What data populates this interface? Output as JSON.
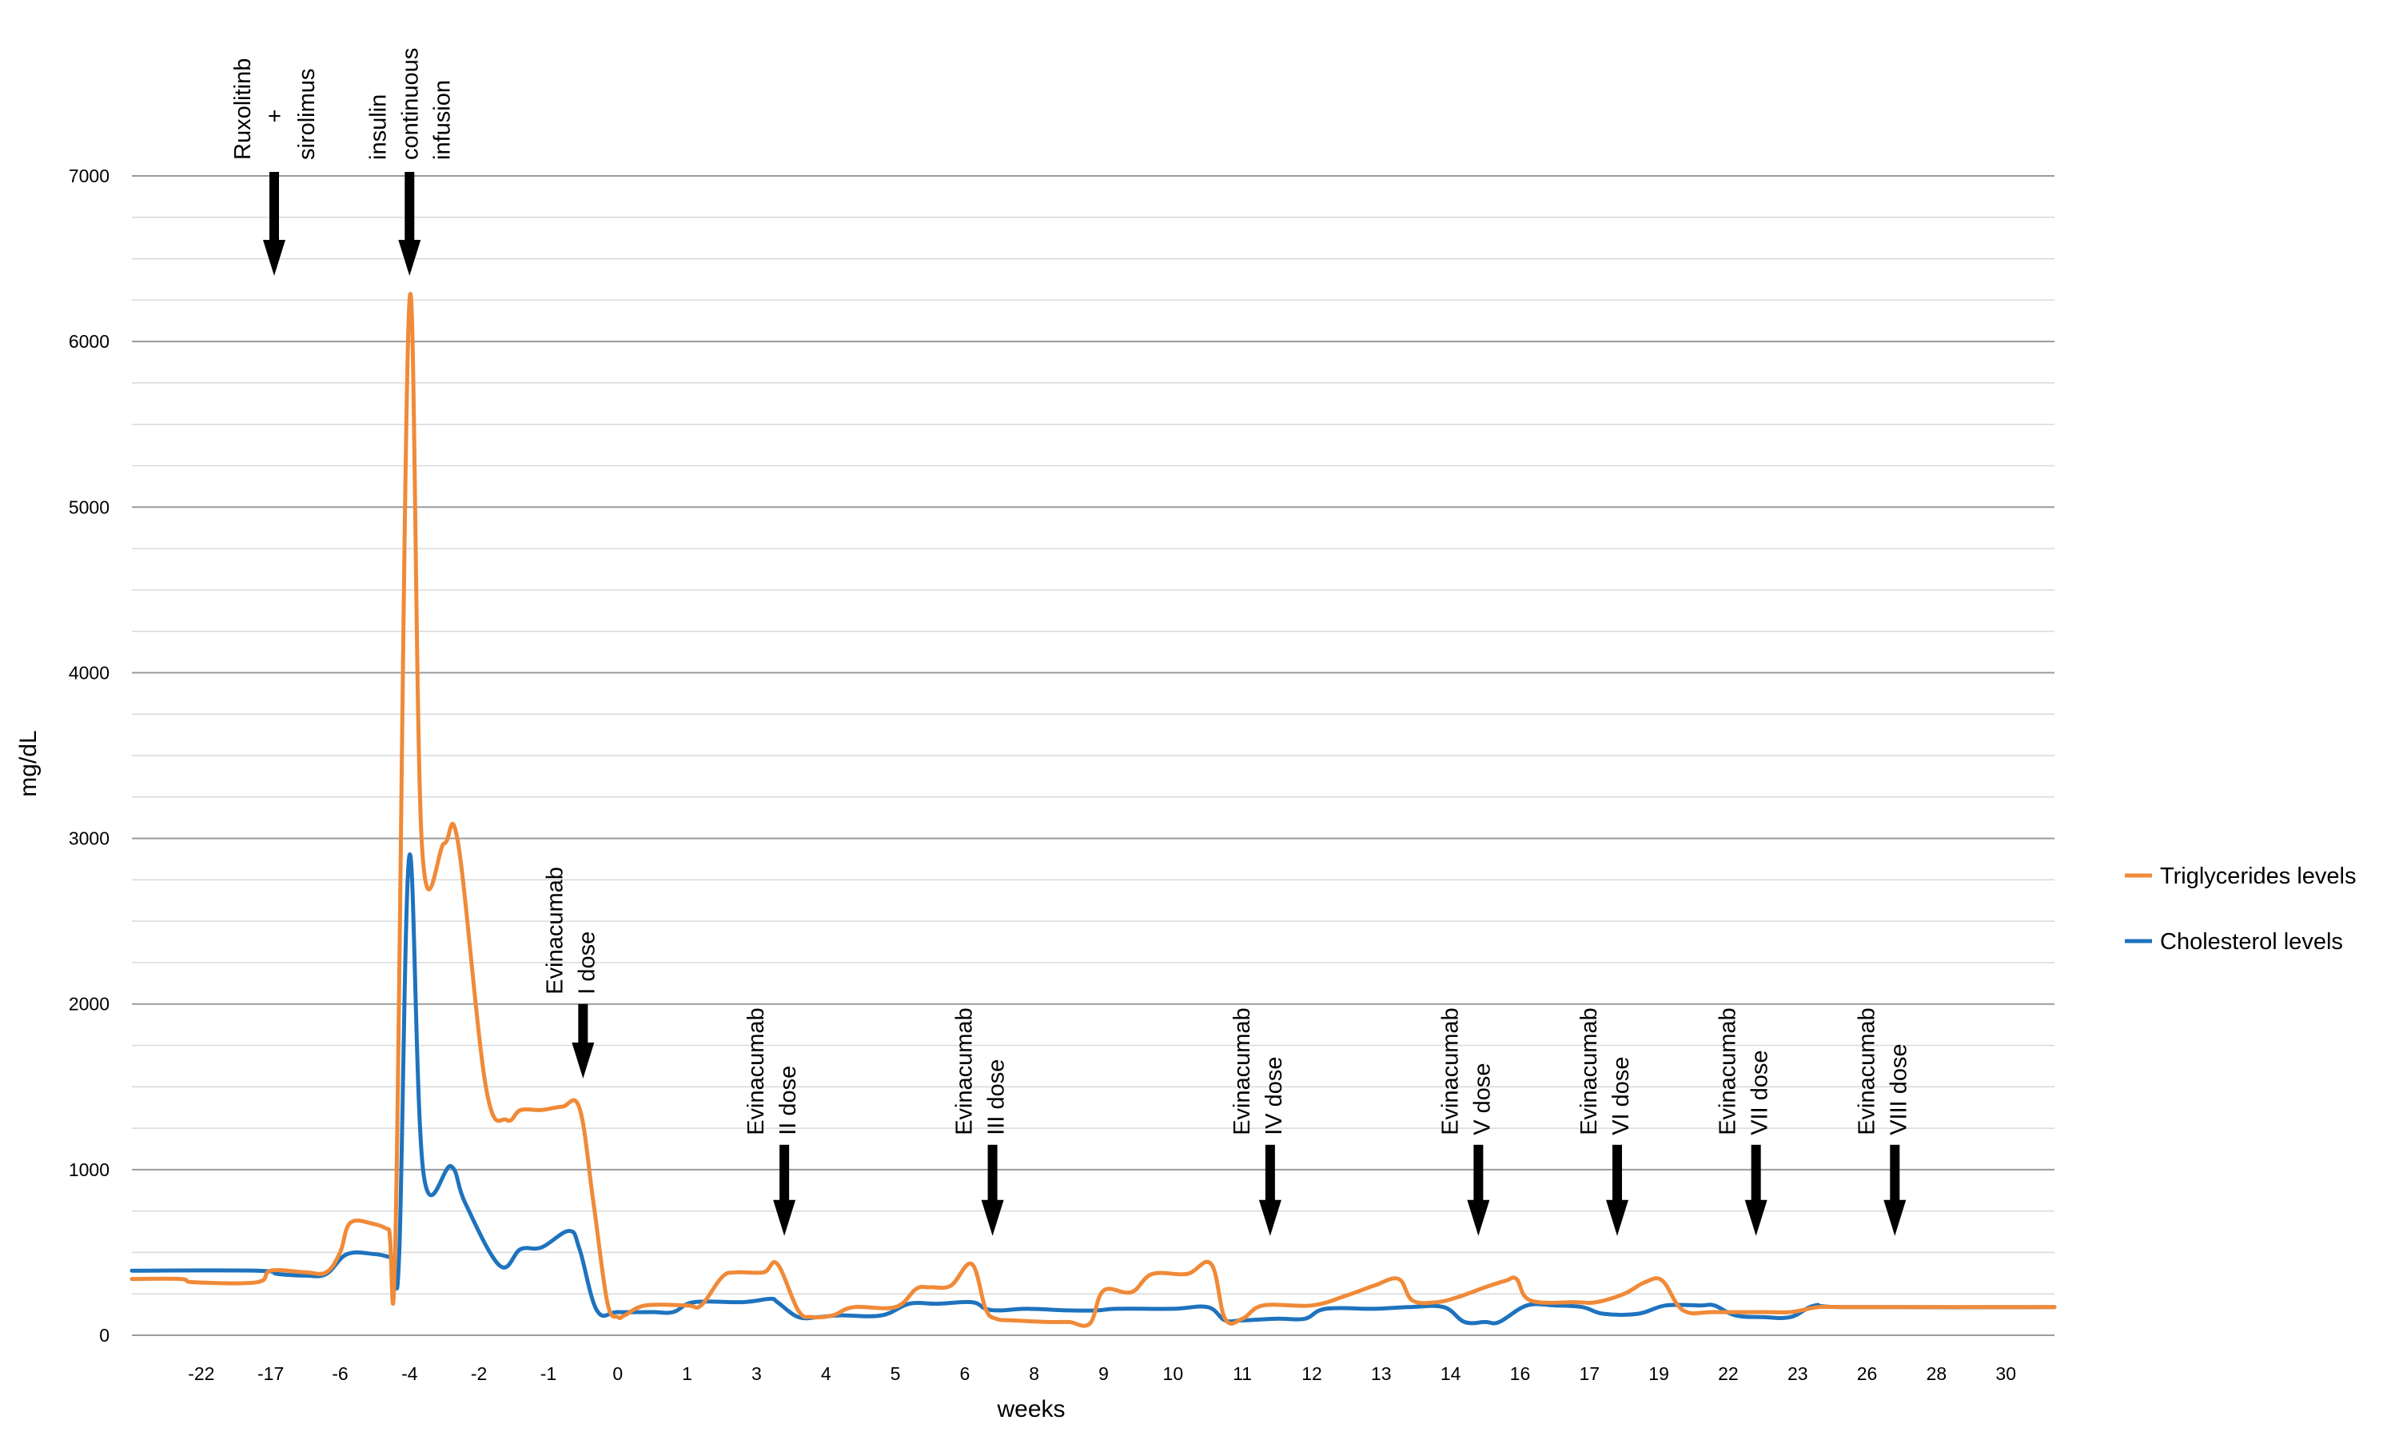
{
  "colors": {
    "triglycerides": "#F08A38",
    "cholesterol": "#1E73BE",
    "grid": "#BFBFBF",
    "arrow": "#000000"
  },
  "chart_data": {
    "type": "line",
    "title": "",
    "xlabel": "weeks",
    "ylabel": "mg/dL",
    "ylim": [
      0,
      7000
    ],
    "grid": true,
    "legend_position": "right",
    "y_ticks": [
      0,
      1000,
      2000,
      3000,
      4000,
      5000,
      6000,
      7000
    ],
    "x_tick_labels": [
      "-22",
      "-17",
      "-6",
      "-4",
      "-2",
      "-1",
      "0",
      "1",
      "3",
      "4",
      "5",
      "6",
      "8",
      "9",
      "10",
      "11",
      "12",
      "13",
      "14",
      "16",
      "17",
      "19",
      "22",
      "23",
      "26",
      "28",
      "30"
    ],
    "x_tick_positions": [
      0.5,
      1.5,
      2.5,
      3.5,
      4.5,
      5.5,
      6.5,
      7.5,
      8.5,
      9.5,
      10.5,
      11.5,
      12.5,
      13.5,
      14.5,
      15.5,
      16.5,
      17.5,
      18.5,
      19.5,
      20.5,
      21.5,
      22.5,
      23.5,
      24.5,
      25.5,
      26.5
    ],
    "x_range": [
      -0.5,
      27.2
    ],
    "series": [
      {
        "name": "Triglycerides levels",
        "color": "#F08A38",
        "points": [
          [
            -0.5,
            340
          ],
          [
            0.2,
            340
          ],
          [
            0.4,
            320
          ],
          [
            1.3,
            320
          ],
          [
            1.5,
            390
          ],
          [
            2.0,
            380
          ],
          [
            2.3,
            380
          ],
          [
            2.5,
            500
          ],
          [
            2.65,
            680
          ],
          [
            3.0,
            670
          ],
          [
            3.2,
            640
          ],
          [
            3.3,
            640
          ],
          [
            3.5,
            6250
          ],
          [
            3.68,
            2950
          ],
          [
            4.0,
            2970
          ],
          [
            4.2,
            2970
          ],
          [
            4.6,
            1500
          ],
          [
            4.9,
            1300
          ],
          [
            5.1,
            1360
          ],
          [
            5.4,
            1360
          ],
          [
            5.7,
            1380
          ],
          [
            5.95,
            1370
          ],
          [
            6.15,
            800
          ],
          [
            6.35,
            200
          ],
          [
            6.5,
            110
          ],
          [
            6.6,
            120
          ],
          [
            6.9,
            180
          ],
          [
            7.5,
            180
          ],
          [
            7.7,
            180
          ],
          [
            8.0,
            350
          ],
          [
            8.2,
            380
          ],
          [
            8.6,
            380
          ],
          [
            8.8,
            430
          ],
          [
            9.1,
            150
          ],
          [
            9.3,
            110
          ],
          [
            9.6,
            120
          ],
          [
            9.9,
            170
          ],
          [
            10.5,
            170
          ],
          [
            10.8,
            280
          ],
          [
            11.0,
            290
          ],
          [
            11.3,
            300
          ],
          [
            11.6,
            430
          ],
          [
            11.8,
            160
          ],
          [
            11.95,
            100
          ],
          [
            12.2,
            90
          ],
          [
            12.7,
            80
          ],
          [
            13.0,
            80
          ],
          [
            13.3,
            70
          ],
          [
            13.5,
            270
          ],
          [
            13.9,
            260
          ],
          [
            14.2,
            370
          ],
          [
            14.7,
            370
          ],
          [
            15.05,
            430
          ],
          [
            15.25,
            100
          ],
          [
            15.5,
            100
          ],
          [
            15.8,
            180
          ],
          [
            16.5,
            180
          ],
          [
            17.0,
            240
          ],
          [
            17.4,
            300
          ],
          [
            17.75,
            340
          ],
          [
            17.95,
            210
          ],
          [
            18.3,
            200
          ],
          [
            18.6,
            230
          ],
          [
            19.0,
            290
          ],
          [
            19.3,
            330
          ],
          [
            19.45,
            340
          ],
          [
            19.65,
            210
          ],
          [
            20.3,
            200
          ],
          [
            20.6,
            200
          ],
          [
            21.0,
            250
          ],
          [
            21.3,
            320
          ],
          [
            21.55,
            330
          ],
          [
            21.85,
            150
          ],
          [
            22.3,
            140
          ],
          [
            23.0,
            140
          ],
          [
            23.4,
            140
          ],
          [
            23.8,
            170
          ],
          [
            24.2,
            170
          ],
          [
            24.5,
            170
          ],
          [
            27.2,
            170
          ]
        ]
      },
      {
        "name": "Cholesterol levels",
        "color": "#1E73BE",
        "points": [
          [
            -0.5,
            390
          ],
          [
            1.3,
            390
          ],
          [
            1.6,
            370
          ],
          [
            2.0,
            360
          ],
          [
            2.3,
            370
          ],
          [
            2.6,
            490
          ],
          [
            3.0,
            490
          ],
          [
            3.25,
            470
          ],
          [
            3.35,
            480
          ],
          [
            3.5,
            2900
          ],
          [
            3.7,
            980
          ],
          [
            4.1,
            1020
          ],
          [
            4.3,
            800
          ],
          [
            4.8,
            420
          ],
          [
            5.1,
            520
          ],
          [
            5.4,
            530
          ],
          [
            5.8,
            630
          ],
          [
            5.95,
            520
          ],
          [
            6.2,
            150
          ],
          [
            6.5,
            140
          ],
          [
            7.0,
            140
          ],
          [
            7.3,
            140
          ],
          [
            7.6,
            200
          ],
          [
            8.3,
            200
          ],
          [
            8.7,
            220
          ],
          [
            8.8,
            200
          ],
          [
            9.1,
            110
          ],
          [
            9.4,
            110
          ],
          [
            9.7,
            120
          ],
          [
            10.3,
            120
          ],
          [
            10.7,
            190
          ],
          [
            11.1,
            190
          ],
          [
            11.6,
            200
          ],
          [
            11.8,
            160
          ],
          [
            12.0,
            150
          ],
          [
            12.4,
            160
          ],
          [
            13.0,
            150
          ],
          [
            13.4,
            150
          ],
          [
            13.7,
            160
          ],
          [
            14.5,
            160
          ],
          [
            15.0,
            170
          ],
          [
            15.25,
            90
          ],
          [
            15.5,
            90
          ],
          [
            16.0,
            100
          ],
          [
            16.4,
            100
          ],
          [
            16.7,
            160
          ],
          [
            17.4,
            160
          ],
          [
            17.9,
            170
          ],
          [
            18.4,
            170
          ],
          [
            18.7,
            80
          ],
          [
            19.0,
            80
          ],
          [
            19.2,
            80
          ],
          [
            19.6,
            180
          ],
          [
            20.0,
            180
          ],
          [
            20.4,
            170
          ],
          [
            20.7,
            130
          ],
          [
            21.2,
            130
          ],
          [
            21.6,
            180
          ],
          [
            22.1,
            180
          ],
          [
            22.3,
            180
          ],
          [
            22.6,
            120
          ],
          [
            23.0,
            110
          ],
          [
            23.4,
            110
          ],
          [
            23.75,
            180
          ],
          [
            24.2,
            170
          ],
          [
            27.2,
            170
          ]
        ]
      }
    ],
    "annotations": [
      {
        "lines": [
          "Ruxolitinb",
          "+",
          "sirolimus"
        ],
        "x": 1.55,
        "label_top": true
      },
      {
        "lines": [
          "insulin",
          "continuous",
          "infusion"
        ],
        "x": 3.5,
        "label_top": true
      },
      {
        "lines": [
          "Evinacumab",
          "I dose"
        ],
        "x": 6.0,
        "y_top": 2850,
        "arrow_top": 2000,
        "arrow_bottom": 1550
      },
      {
        "lines": [
          "Evinacumab",
          "II dose"
        ],
        "x": 8.9,
        "y_top": 2000,
        "arrow_top": 1150,
        "arrow_bottom": 600
      },
      {
        "lines": [
          "Evinacumab",
          "III dose"
        ],
        "x": 11.9,
        "y_top": 2000,
        "arrow_top": 1150,
        "arrow_bottom": 600
      },
      {
        "lines": [
          "Evinacumab",
          "IV dose"
        ],
        "x": 15.9,
        "y_top": 2000,
        "arrow_top": 1150,
        "arrow_bottom": 600
      },
      {
        "lines": [
          "Evinacumab",
          "V dose"
        ],
        "x": 18.9,
        "y_top": 2000,
        "arrow_top": 1150,
        "arrow_bottom": 600
      },
      {
        "lines": [
          "Evinacumab",
          "VI dose"
        ],
        "x": 20.9,
        "y_top": 2000,
        "arrow_top": 1150,
        "arrow_bottom": 600
      },
      {
        "lines": [
          "Evinacumab",
          "VII dose"
        ],
        "x": 22.9,
        "y_top": 2000,
        "arrow_top": 1150,
        "arrow_bottom": 600
      },
      {
        "lines": [
          "Evinacumab",
          "VIII dose"
        ],
        "x": 24.9,
        "y_top": 2000,
        "arrow_top": 1150,
        "arrow_bottom": 600
      }
    ],
    "legend": [
      {
        "label": "Triglycerides levels",
        "color": "#F08A38"
      },
      {
        "label": "Cholesterol levels",
        "color": "#1E73BE"
      }
    ]
  }
}
